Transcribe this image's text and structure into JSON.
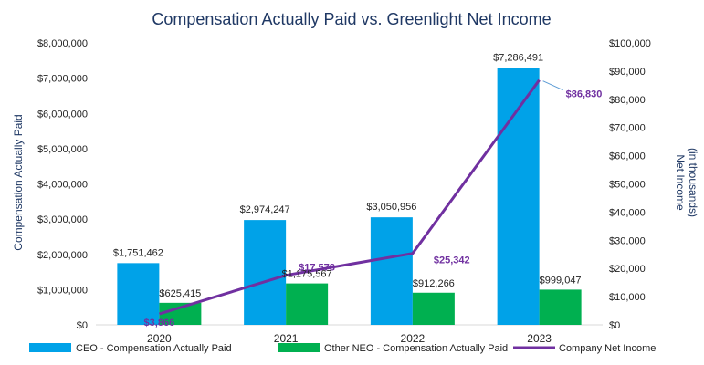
{
  "chart_data": {
    "type": "bar",
    "title": "Compensation Actually Paid vs. Greenlight Net Income",
    "categories": [
      "2020",
      "2021",
      "2022",
      "2023"
    ],
    "ylabel": "Compensation Actually Paid",
    "ylabel2_line1": "Net Income",
    "ylabel2_line2": "(in thousands)",
    "ylim": [
      0,
      8000000
    ],
    "ylim2": [
      0,
      100000
    ],
    "yticks": [
      "$0",
      "$1,000,000",
      "$2,000,000",
      "$3,000,000",
      "$4,000,000",
      "$5,000,000",
      "$6,000,000",
      "$7,000,000",
      "$8,000,000"
    ],
    "yticks2": [
      "$0",
      "$10,000",
      "$20,000",
      "$30,000",
      "$40,000",
      "$50,000",
      "$60,000",
      "$70,000",
      "$80,000",
      "$90,000",
      "$100,000"
    ],
    "series": [
      {
        "name": "CEO - Compensation Actually Paid",
        "type": "bar",
        "color": "#00a2e8",
        "values": [
          1751462,
          2974247,
          3050956,
          7286491
        ],
        "labels": [
          "$1,751,462",
          "$2,974,247",
          "$3,050,956",
          "$7,286,491"
        ]
      },
      {
        "name": "Other NEO - Compensation Actually Paid",
        "type": "bar",
        "color": "#00b050",
        "values": [
          625415,
          1175567,
          912266,
          999047
        ],
        "labels": [
          "$625,415",
          "$1,175,567",
          "$912,266",
          "$999,047"
        ]
      },
      {
        "name": "Company Net Income",
        "type": "line",
        "axis": "right",
        "color": "#7030a0",
        "values": [
          3866,
          17578,
          25342,
          86830
        ],
        "labels": [
          "$3,866",
          "$17,578",
          "$25,342",
          "$86,830"
        ]
      }
    ]
  }
}
